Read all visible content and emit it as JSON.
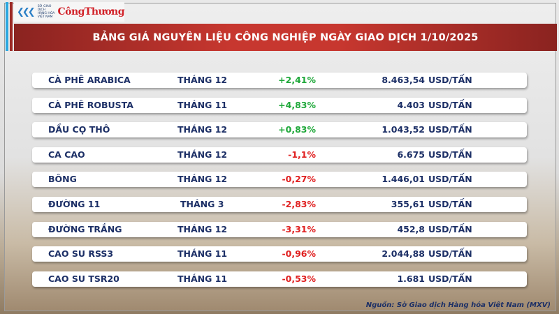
{
  "logo": {
    "exchange": "SỞ GIAO DỊCH HÀNG HÓA VIỆT NAM",
    "brand": "CôngThương"
  },
  "title": "BẢNG GIÁ NGUYÊN LIỆU CÔNG NGHIỆP NGÀY GIAO DỊCH 1/10/2025",
  "colors": {
    "up": "#1fa83a",
    "down": "#e02020",
    "text": "#1c2f66",
    "banner": "#c7372f"
  },
  "rows": [
    {
      "name": "CÀ PHÊ ARABICA",
      "month": "THÁNG 12",
      "change": "+2,41%",
      "direction": "up",
      "price": "8.463,54",
      "unit": "USD/TẤN"
    },
    {
      "name": "CÀ PHÊ ROBUSTA",
      "month": "THÁNG 11",
      "change": "+4,83%",
      "direction": "up",
      "price": "4.403",
      "unit": "USD/TẤN"
    },
    {
      "name": "DẦU CỌ THÔ",
      "month": "THÁNG 12",
      "change": "+0,83%",
      "direction": "up",
      "price": "1.043,52",
      "unit": "USD/TẤN"
    },
    {
      "name": "CA CAO",
      "month": "THÁNG 12",
      "change": "-1,1%",
      "direction": "down",
      "price": "6.675",
      "unit": "USD/TẤN"
    },
    {
      "name": "BÔNG",
      "month": "THÁNG 12",
      "change": "-0,27%",
      "direction": "down",
      "price": "1.446,01",
      "unit": "USD/TẤN"
    },
    {
      "name": "ĐƯỜNG 11",
      "month": "THÁNG 3",
      "change": "-2,83%",
      "direction": "down",
      "price": "355,61",
      "unit": "USD/TẤN"
    },
    {
      "name": "ĐƯỜNG TRẮNG",
      "month": "THÁNG 12",
      "change": "-3,31%",
      "direction": "down",
      "price": "452,8",
      "unit": "USD/TẤN"
    },
    {
      "name": "CAO SU RSS3",
      "month": "THÁNG 11",
      "change": "-0,96%",
      "direction": "down",
      "price": "2.044,88",
      "unit": "USD/TẤN"
    },
    {
      "name": "CAO SU TSR20",
      "month": "THÁNG 11",
      "change": "-0,53%",
      "direction": "down",
      "price": "1.681",
      "unit": "USD/TẤN"
    }
  ],
  "source": "Nguồn: Sở Giao dịch Hàng hóa Việt Nam (MXV)"
}
